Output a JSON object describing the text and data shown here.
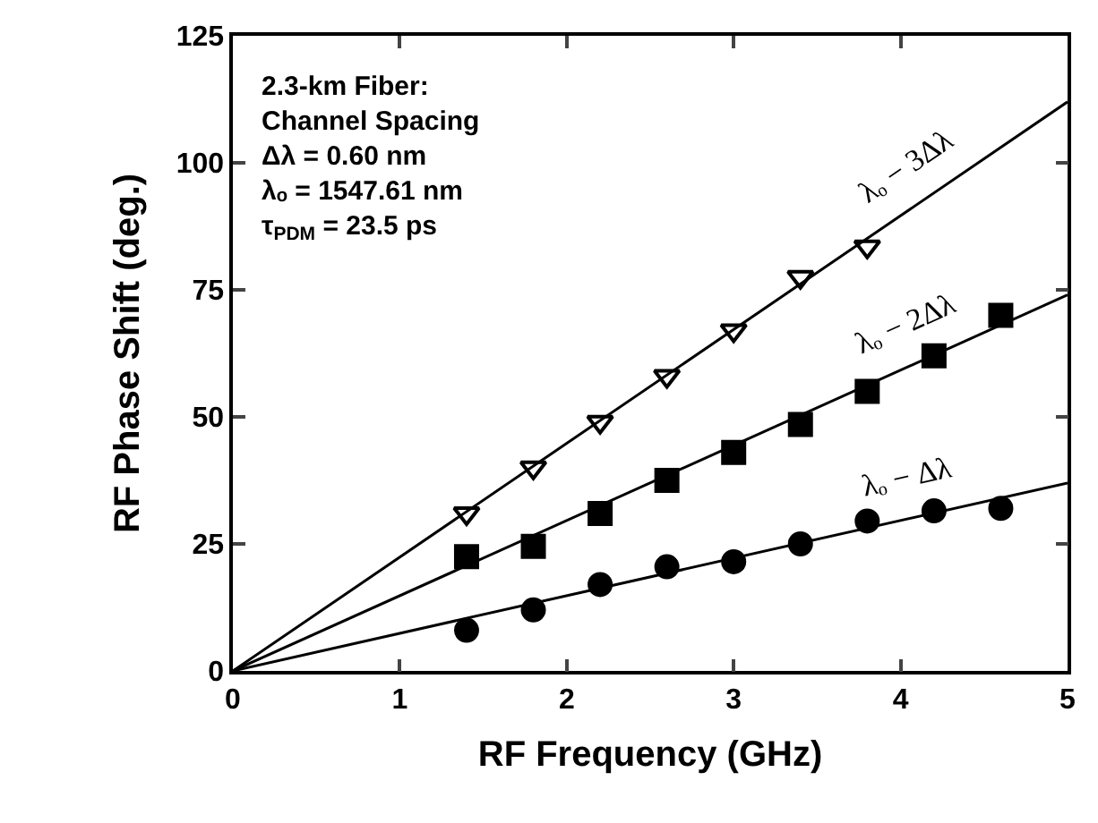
{
  "chart_data": {
    "type": "scatter",
    "xlabel": "RF Frequency (GHz)",
    "ylabel": "RF Phase Shift (deg.)",
    "xlim": [
      0,
      5
    ],
    "xticks": [
      0,
      1,
      2,
      3,
      4,
      5
    ],
    "ylim": [
      0,
      125
    ],
    "yticks": [
      0,
      25,
      50,
      75,
      100,
      125
    ],
    "legend": false,
    "annotations": [
      "2.3-km Fiber:",
      "Channel Spacing",
      "Δλ = 0.60 nm",
      "λₒ = 1547.61 nm",
      "τ$_{PDM}$ = 23.5 ps"
    ],
    "series": [
      {
        "marker": "triangle",
        "color": "#000000",
        "x": [
          1.4,
          1.8,
          2.2,
          2.6,
          3.0,
          3.4,
          3.8
        ],
        "values": [
          31,
          40,
          49,
          58,
          67,
          77.5,
          83.5
        ]
      },
      {
        "marker": "square",
        "color": "#000000",
        "x": [
          1.4,
          1.8,
          2.2,
          2.6,
          3.0,
          3.4,
          3.8,
          4.2,
          4.6
        ],
        "values": [
          22.5,
          24.5,
          31,
          37.5,
          43,
          48.5,
          55,
          62,
          70
        ]
      },
      {
        "marker": "circle",
        "color": "#000000",
        "x": [
          1.4,
          1.8,
          2.2,
          2.6,
          3.0,
          3.4,
          3.8,
          4.2,
          4.6
        ],
        "values": [
          8,
          12,
          17,
          20.5,
          21.5,
          25,
          29.5,
          31.5,
          32
        ]
      },
      {
        "type": "line",
        "name": "λₒ − 3Δλ",
        "marker": "none",
        "color": "#000000",
        "x": [
          0,
          5
        ],
        "values": [
          0,
          112
        ]
      },
      {
        "type": "line",
        "name": "λₒ − 2Δλ",
        "marker": "none",
        "color": "#000000",
        "x": [
          0,
          5
        ],
        "values": [
          0,
          74
        ]
      },
      {
        "type": "line",
        "name": "λₒ − Δλ",
        "marker": "none",
        "color": "#000000",
        "x": [
          0,
          5
        ],
        "values": [
          0,
          37
        ]
      }
    ]
  }
}
